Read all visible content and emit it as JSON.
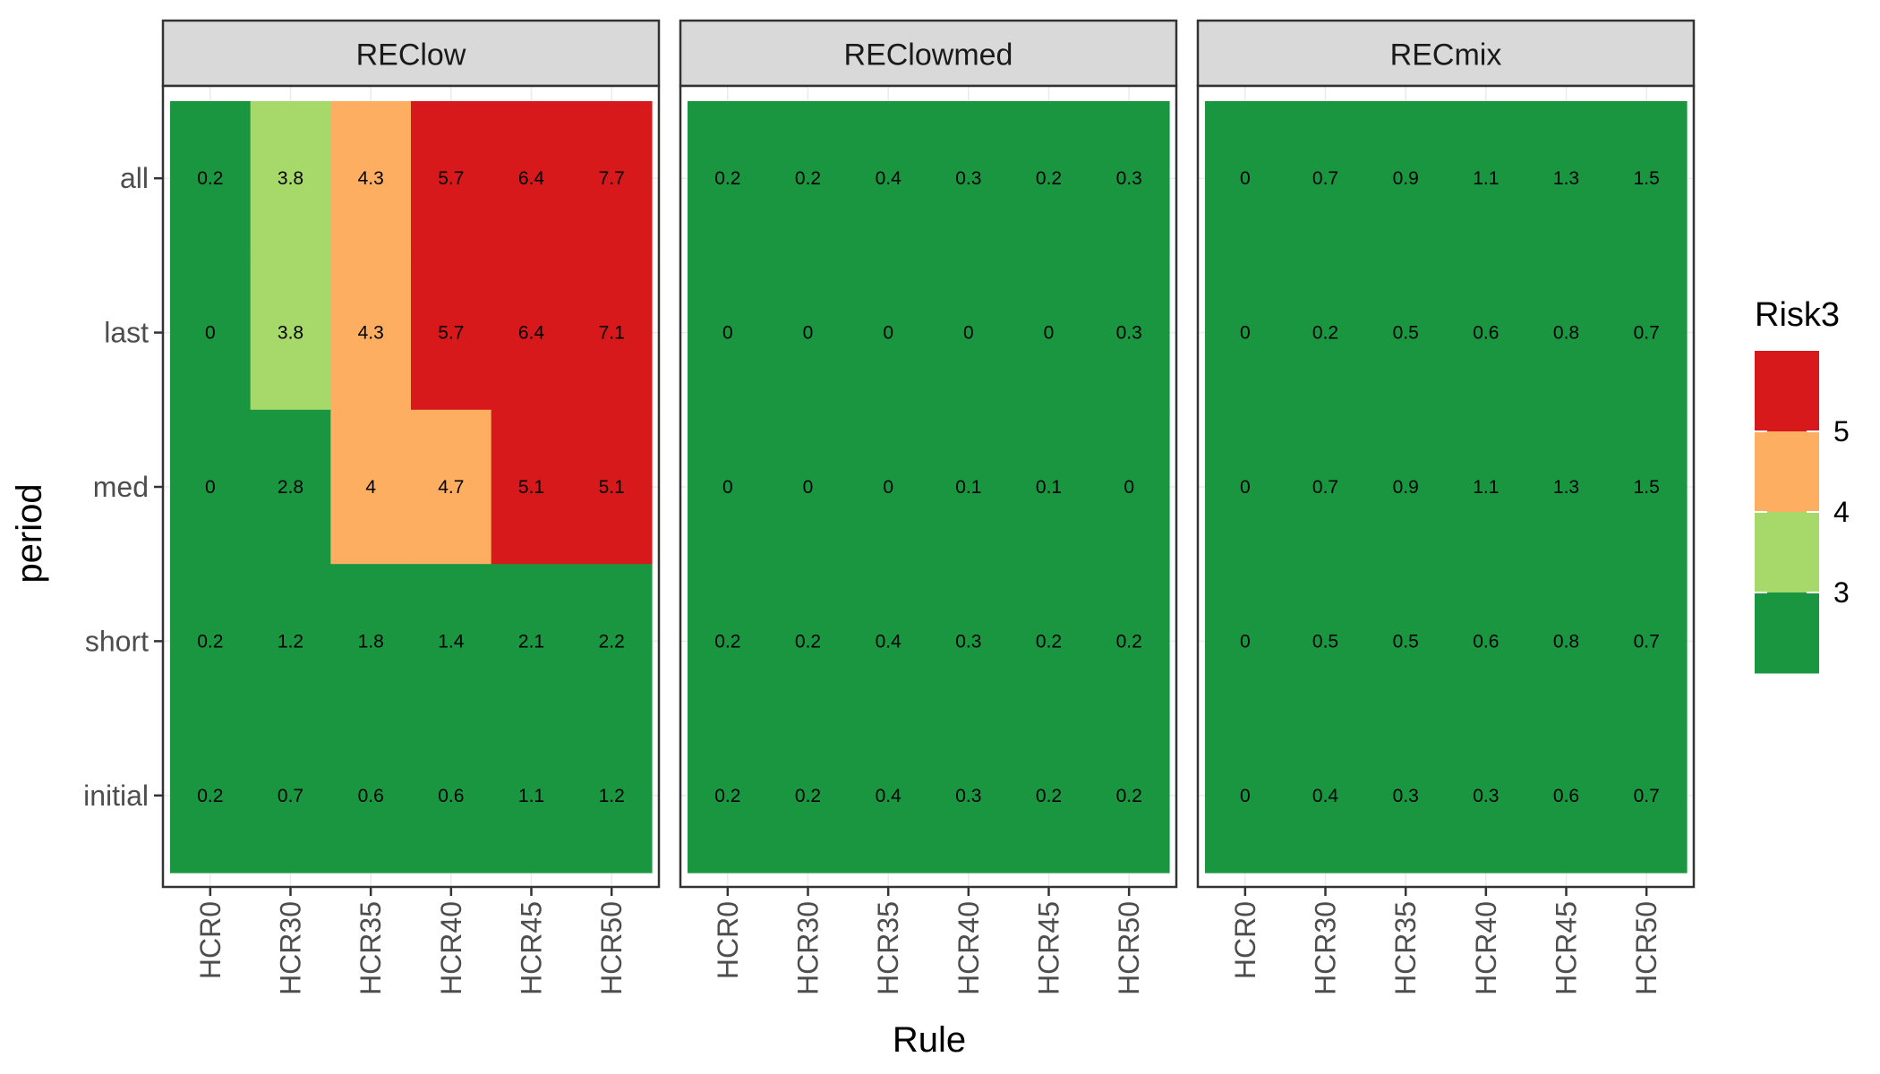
{
  "chart_data": {
    "type": "heatmap",
    "xlabel": "Rule",
    "ylabel": "period",
    "x_categories": [
      "HCR0",
      "HCR30",
      "HCR35",
      "HCR40",
      "HCR45",
      "HCR50"
    ],
    "y_categories": [
      "all",
      "last",
      "med",
      "short",
      "initial"
    ],
    "grid": true,
    "legend": {
      "title": "Risk3",
      "position": "right",
      "tick_labels": [
        "5",
        "4",
        "3"
      ],
      "bins": [
        {
          "color": "#d7191c"
        },
        {
          "color": "#fdae61"
        },
        {
          "color": "#a6d96a"
        },
        {
          "color": "#1a9641"
        }
      ]
    },
    "panels": [
      {
        "name": "REClow",
        "values": [
          [
            "0.2",
            "3.8",
            "4.3",
            "5.7",
            "6.4",
            "7.7"
          ],
          [
            "0",
            "3.8",
            "4.3",
            "5.7",
            "6.4",
            "7.1"
          ],
          [
            "0",
            "2.8",
            "4",
            "4.7",
            "5.1",
            "5.1"
          ],
          [
            "0.2",
            "1.2",
            "1.8",
            "1.4",
            "2.1",
            "2.2"
          ],
          [
            "0.2",
            "0.7",
            "0.6",
            "0.6",
            "1.1",
            "1.2"
          ]
        ]
      },
      {
        "name": "REClowmed",
        "values": [
          [
            "0.2",
            "0.2",
            "0.4",
            "0.3",
            "0.2",
            "0.3"
          ],
          [
            "0",
            "0",
            "0",
            "0",
            "0",
            "0.3"
          ],
          [
            "0",
            "0",
            "0",
            "0.1",
            "0.1",
            "0"
          ],
          [
            "0.2",
            "0.2",
            "0.4",
            "0.3",
            "0.2",
            "0.2"
          ],
          [
            "0.2",
            "0.2",
            "0.4",
            "0.3",
            "0.2",
            "0.2"
          ]
        ]
      },
      {
        "name": "RECmix",
        "values": [
          [
            "0",
            "0.7",
            "0.9",
            "1.1",
            "1.3",
            "1.5"
          ],
          [
            "0",
            "0.2",
            "0.5",
            "0.6",
            "0.8",
            "0.7"
          ],
          [
            "0",
            "0.7",
            "0.9",
            "1.1",
            "1.3",
            "1.5"
          ],
          [
            "0",
            "0.5",
            "0.5",
            "0.6",
            "0.8",
            "0.7"
          ],
          [
            "0",
            "0.4",
            "0.3",
            "0.3",
            "0.6",
            "0.7"
          ]
        ]
      }
    ]
  }
}
